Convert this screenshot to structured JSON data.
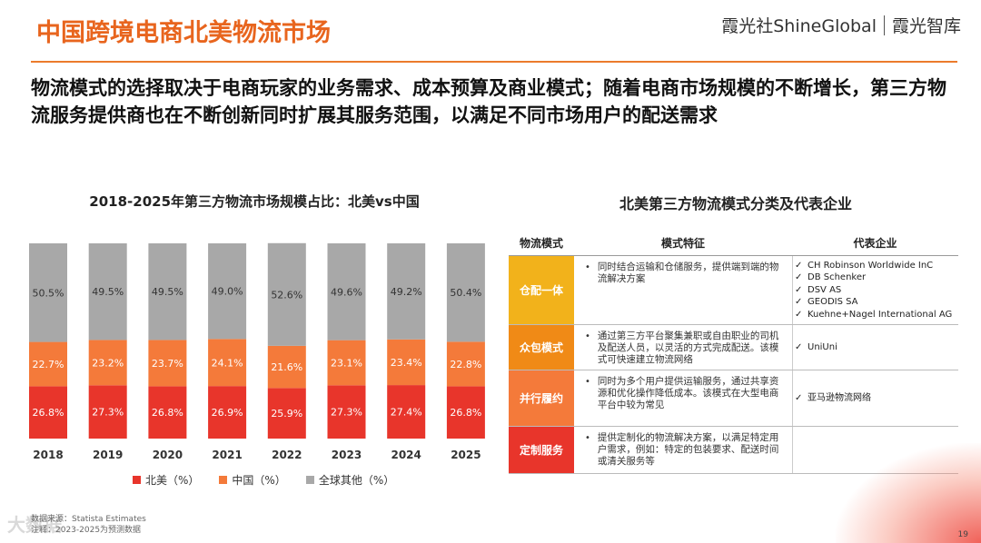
{
  "header": {
    "title": "中国跨境电商北美物流市场",
    "brand_left": "霞光社ShineGlobal",
    "brand_right": "霞光智库"
  },
  "subtitle": "物流模式的选择取决于电商玩家的业务需求、成本预算及商业模式；随着电商市场规模的不断增长，第三方物流服务提供商也在不断创新同时扩展其服务范围，以满足不同市场用户的配送需求",
  "chart_data": {
    "type": "bar",
    "stacked": true,
    "title": "2018-2025年第三方物流市场规模占比：北美vs中国",
    "categories": [
      "2018",
      "2019",
      "2020",
      "2021",
      "2022",
      "2023",
      "2024",
      "2025"
    ],
    "series": [
      {
        "name": "北美（%）",
        "color": "#e8352b",
        "values": [
          26.8,
          27.3,
          26.8,
          26.9,
          25.9,
          27.3,
          27.4,
          26.8
        ]
      },
      {
        "name": "中国（%）",
        "color": "#f47a3a",
        "values": [
          22.7,
          23.2,
          23.7,
          24.1,
          21.6,
          23.1,
          23.4,
          22.8
        ]
      },
      {
        "name": "全球其他（%）",
        "color": "#a8a8a8",
        "values": [
          50.5,
          49.5,
          49.5,
          49.0,
          52.6,
          49.6,
          49.2,
          50.4
        ]
      }
    ],
    "ylim": [
      0,
      100
    ],
    "legend": "bottom"
  },
  "table": {
    "title": "北美第三方物流模式分类及代表企业",
    "headers": [
      "物流模式",
      "模式特征",
      "代表企业"
    ],
    "rows": [
      {
        "mode": "仓配一体",
        "color": "#f2b21b",
        "feature": "同时结合运输和仓储服务，提供端到端的物流解决方案",
        "enterprises": [
          "CH Robinson Worldwide InC",
          "DB Schenker",
          "DSV AS",
          "GEODIS SA",
          "Kuehne+Nagel International AG"
        ]
      },
      {
        "mode": "众包模式",
        "color": "#f08a16",
        "feature": "通过第三方平台聚集兼职或自由职业的司机及配送人员，以灵活的方式完成配送。该模式可快速建立物流网络",
        "enterprises": [
          "UniUni"
        ]
      },
      {
        "mode": "并行履约",
        "color": "#f47a3a",
        "feature": "同时为多个用户提供运输服务，通过共享资源和优化操作降低成本。该模式在大型电商平台中较为常见",
        "enterprises": [
          "亚马逊物流网络"
        ]
      },
      {
        "mode": "定制服务",
        "color": "#e8352b",
        "feature": "提供定制化的物流解决方案，以满足特定用户需求，例如：特定的包装要求、配送时间或清关服务等",
        "enterprises": []
      }
    ]
  },
  "footnote": {
    "source": "数据来源：Statista  Estimates",
    "note": "注释：2023-2025为预测数据"
  },
  "watermark": "大数据",
  "page_number": "19"
}
